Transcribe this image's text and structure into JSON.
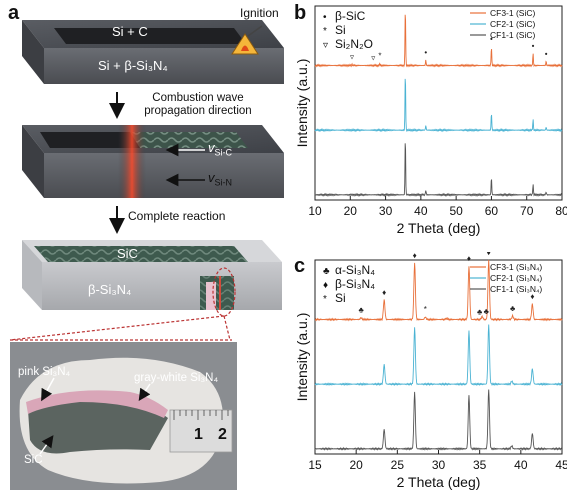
{
  "figure": {
    "panel_a": {
      "label": "a",
      "ignition_label": "Ignition",
      "block1_top": "Si + C",
      "block1_bottom": "Si + β-Si₃N₄",
      "arrow1_line1": "Combustion wave",
      "arrow1_line2": "propagation direction",
      "v_sic_main": "v",
      "v_sic_sub": "Si-C",
      "v_sin_main": "v",
      "v_sin_sub": "Si-N",
      "arrow2_label": "Complete reaction",
      "block3_top": "SiC",
      "block3_bottom": "β-Si₃N₄",
      "photo_pink": "pink Si₃N₄",
      "photo_gray": "gray-white Si₃N₄",
      "photo_sic": "SiC",
      "ruler_1": "1",
      "ruler_2": "2"
    },
    "panel_b": {
      "label": "b",
      "legend_left": [
        {
          "symbol": "•",
          "text": "β-SiC"
        },
        {
          "symbol": "*",
          "text": "Si"
        },
        {
          "symbol": "▿",
          "text": "Si₂N₂O"
        }
      ]
    },
    "panel_c": {
      "label": "c",
      "legend_left": [
        {
          "symbol": "♣",
          "text": "α-Si₃N₄"
        },
        {
          "symbol": "♦",
          "text": "β-Si₃N₄"
        },
        {
          "symbol": "*",
          "text": "Si"
        }
      ]
    }
  },
  "chart_data": [
    {
      "type": "line",
      "panel": "b",
      "xlabel": "2 Theta (deg)",
      "ylabel": "Intensity (a.u.)",
      "xlim": [
        10,
        80
      ],
      "xticks": [
        10,
        20,
        30,
        40,
        50,
        60,
        70,
        80
      ],
      "series": [
        {
          "name": "CF3-1 (SiC)",
          "color": "#e8703a",
          "offset": 2,
          "peaks": [
            [
              35.6,
              1.0
            ],
            [
              41.4,
              0.09
            ],
            [
              60.0,
              0.32
            ],
            [
              71.8,
              0.2
            ],
            [
              75.5,
              0.07
            ],
            [
              28.4,
              0.03
            ],
            [
              20.5,
              0.02
            ]
          ]
        },
        {
          "name": "CF2-1 (SiC)",
          "color": "#4bb3d3",
          "offset": 1,
          "peaks": [
            [
              35.6,
              1.0
            ],
            [
              41.4,
              0.08
            ],
            [
              60.0,
              0.3
            ],
            [
              71.8,
              0.18
            ],
            [
              75.5,
              0.05
            ]
          ]
        },
        {
          "name": "CF1-1 (SiC)",
          "color": "#555555",
          "offset": 0,
          "peaks": [
            [
              35.6,
              1.0
            ],
            [
              41.4,
              0.08
            ],
            [
              60.0,
              0.3
            ],
            [
              71.8,
              0.18
            ],
            [
              75.5,
              0.05
            ]
          ]
        }
      ],
      "markers": [
        {
          "x": 35.6,
          "symbol": "•"
        },
        {
          "x": 41.4,
          "symbol": "•"
        },
        {
          "x": 60.0,
          "symbol": "•"
        },
        {
          "x": 71.8,
          "symbol": "•"
        },
        {
          "x": 75.5,
          "symbol": "•"
        },
        {
          "x": 20.5,
          "symbol": "▿"
        },
        {
          "x": 26.5,
          "symbol": "▿"
        },
        {
          "x": 28.4,
          "symbol": "*"
        }
      ]
    },
    {
      "type": "line",
      "panel": "c",
      "xlabel": "2 Theta (deg)",
      "ylabel": "Intensity (a.u.)",
      "xlim": [
        15,
        45
      ],
      "xticks": [
        15,
        20,
        25,
        30,
        35,
        40,
        45
      ],
      "series": [
        {
          "name": "CF3-1 (Si₃N₄)",
          "color": "#e8703a",
          "offset": 2,
          "peaks": [
            [
              20.6,
              0.03
            ],
            [
              23.4,
              0.33
            ],
            [
              27.1,
              0.95
            ],
            [
              28.4,
              0.04
            ],
            [
              31.0,
              0.02
            ],
            [
              33.7,
              0.9
            ],
            [
              35.3,
              0.05
            ],
            [
              36.1,
              1.0
            ],
            [
              39.0,
              0.06
            ],
            [
              41.4,
              0.26
            ]
          ]
        },
        {
          "name": "CF2-1 (Si₃N₄)",
          "color": "#4bb3d3",
          "offset": 1,
          "peaks": [
            [
              23.4,
              0.33
            ],
            [
              27.1,
              0.95
            ],
            [
              33.7,
              0.9
            ],
            [
              36.1,
              1.0
            ],
            [
              38.9,
              0.05
            ],
            [
              41.4,
              0.26
            ]
          ]
        },
        {
          "name": "CF1-1 (Si₃N₄)",
          "color": "#555555",
          "offset": 0,
          "peaks": [
            [
              23.4,
              0.33
            ],
            [
              27.1,
              0.95
            ],
            [
              33.7,
              0.9
            ],
            [
              36.1,
              1.0
            ],
            [
              38.9,
              0.05
            ],
            [
              41.4,
              0.26
            ]
          ]
        }
      ],
      "markers": [
        {
          "x": 20.6,
          "symbol": "♣"
        },
        {
          "x": 23.4,
          "symbol": "♦"
        },
        {
          "x": 27.1,
          "symbol": "♦"
        },
        {
          "x": 28.4,
          "symbol": "*"
        },
        {
          "x": 33.7,
          "symbol": "♦"
        },
        {
          "x": 35.0,
          "symbol": "♣"
        },
        {
          "x": 35.8,
          "symbol": "♣"
        },
        {
          "x": 36.1,
          "symbol": "♦"
        },
        {
          "x": 39.0,
          "symbol": "♣"
        },
        {
          "x": 41.4,
          "symbol": "♦"
        }
      ]
    }
  ]
}
